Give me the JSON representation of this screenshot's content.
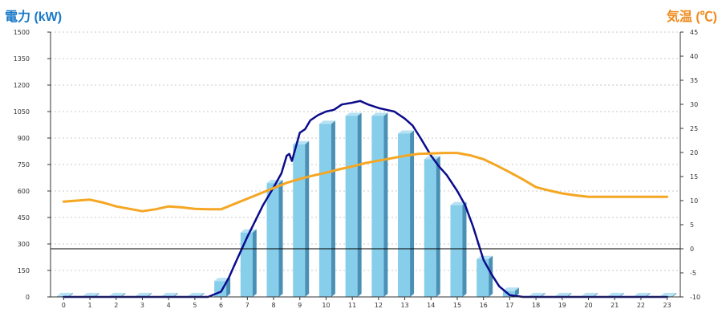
{
  "chart_data": {
    "type": "bar",
    "y_left_title": "電力 (kW)",
    "y_right_title": "気温 (℃)",
    "colors": {
      "title_left": "#1a7ac8",
      "title_right": "#f08a1c",
      "bar_front": "#87ceeb",
      "bar_side": "#4a90b5",
      "bar_top": "#b6e2f4",
      "line_power": "#0b0b8c",
      "line_temp": "#f5a623",
      "grid": "#c8c8c8"
    },
    "categories": [
      "0",
      "1",
      "2",
      "3",
      "4",
      "5",
      "6",
      "7",
      "8",
      "9",
      "10",
      "11",
      "12",
      "13",
      "14",
      "15",
      "16",
      "17",
      "18",
      "19",
      "20",
      "21",
      "22",
      "23"
    ],
    "y_left": {
      "min": 0,
      "max": 1500,
      "ticks": [
        "0",
        "150",
        "300",
        "450",
        "600",
        "750",
        "900",
        "1050",
        "1200",
        "1350",
        "1500"
      ]
    },
    "y_right": {
      "min": -10,
      "max": 45,
      "ticks": [
        "-10",
        "-5",
        "0",
        "5",
        "10",
        "15",
        "20",
        "25",
        "30",
        "35",
        "40",
        "45"
      ]
    },
    "series": [
      {
        "kind": "bar",
        "axis": "left",
        "values": [
          5,
          5,
          5,
          5,
          5,
          5,
          90,
          365,
          645,
          865,
          980,
          1025,
          1025,
          925,
          780,
          520,
          215,
          35,
          5,
          5,
          5,
          5,
          5,
          5
        ]
      },
      {
        "kind": "line",
        "axis": "left",
        "x": [
          0,
          5,
          5.5,
          6,
          6.3,
          6.6,
          7,
          7.3,
          7.6,
          8,
          8.3,
          8.5,
          8.6,
          8.7,
          9,
          9.2,
          9.4,
          9.7,
          10,
          10.3,
          10.6,
          11,
          11.3,
          11.6,
          12,
          12.3,
          12.6,
          13,
          13.3,
          13.6,
          14,
          14.3,
          14.6,
          15,
          15.3,
          15.6,
          16,
          16.3,
          16.6,
          17,
          17.5,
          23
        ],
        "y": [
          0,
          0,
          0,
          30,
          110,
          210,
          340,
          430,
          520,
          620,
          700,
          800,
          810,
          770,
          930,
          950,
          1000,
          1030,
          1050,
          1060,
          1090,
          1100,
          1110,
          1090,
          1070,
          1060,
          1050,
          1010,
          970,
          900,
          800,
          740,
          690,
          600,
          520,
          400,
          210,
          130,
          60,
          10,
          0,
          0
        ]
      },
      {
        "kind": "line",
        "axis": "right",
        "x": [
          0,
          0.5,
          1,
          1.5,
          2,
          2.5,
          3,
          3.5,
          4,
          4.5,
          5,
          5.5,
          6,
          6.5,
          7,
          7.5,
          8,
          8.5,
          9,
          9.5,
          10,
          10.5,
          11,
          11.5,
          12,
          12.5,
          13,
          13.5,
          14,
          14.5,
          15,
          15.5,
          16,
          16.5,
          17,
          17.5,
          18,
          18.5,
          19,
          19.5,
          20,
          20.5,
          21,
          21.5,
          22,
          22.5,
          23
        ],
        "y": [
          9.8,
          10,
          10.2,
          9.6,
          8.8,
          8.3,
          7.8,
          8.2,
          8.8,
          8.6,
          8.3,
          8.2,
          8.2,
          9.3,
          10.4,
          11.5,
          12.6,
          13.7,
          14.5,
          15.2,
          15.8,
          16.5,
          17.1,
          17.8,
          18.3,
          18.8,
          19.3,
          19.7,
          19.8,
          19.9,
          19.9,
          19.4,
          18.6,
          17.3,
          15.9,
          14.4,
          12.8,
          12.1,
          11.5,
          11.1,
          10.8,
          10.8,
          10.8,
          10.8,
          10.8,
          10.8,
          10.8
        ]
      }
    ]
  }
}
